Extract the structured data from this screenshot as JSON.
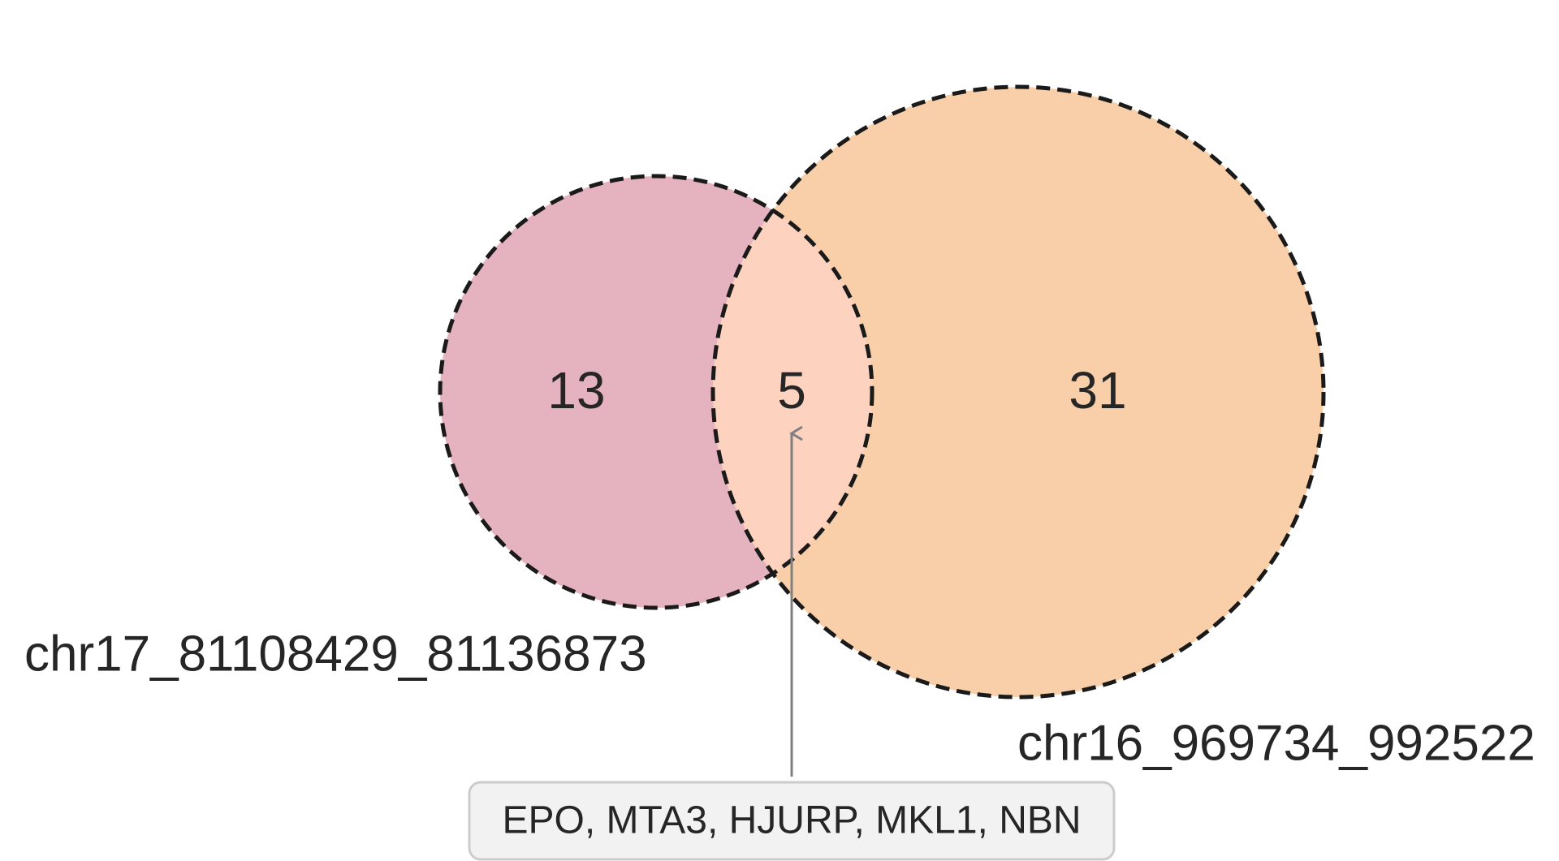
{
  "chart_data": {
    "type": "venn",
    "sets": [
      {
        "label": "chr17_81108429_81136873",
        "only_count": "13",
        "color": "#e5b2bf"
      },
      {
        "label": "chr16_969734_992522",
        "only_count": "31",
        "color": "#f8cfa9"
      }
    ],
    "intersection": {
      "count": "5",
      "color": "#fdd2bf",
      "genes_annotation": "EPO, MTA3, HJURP, MKL1, NBN"
    },
    "outline_style": "dashed"
  }
}
